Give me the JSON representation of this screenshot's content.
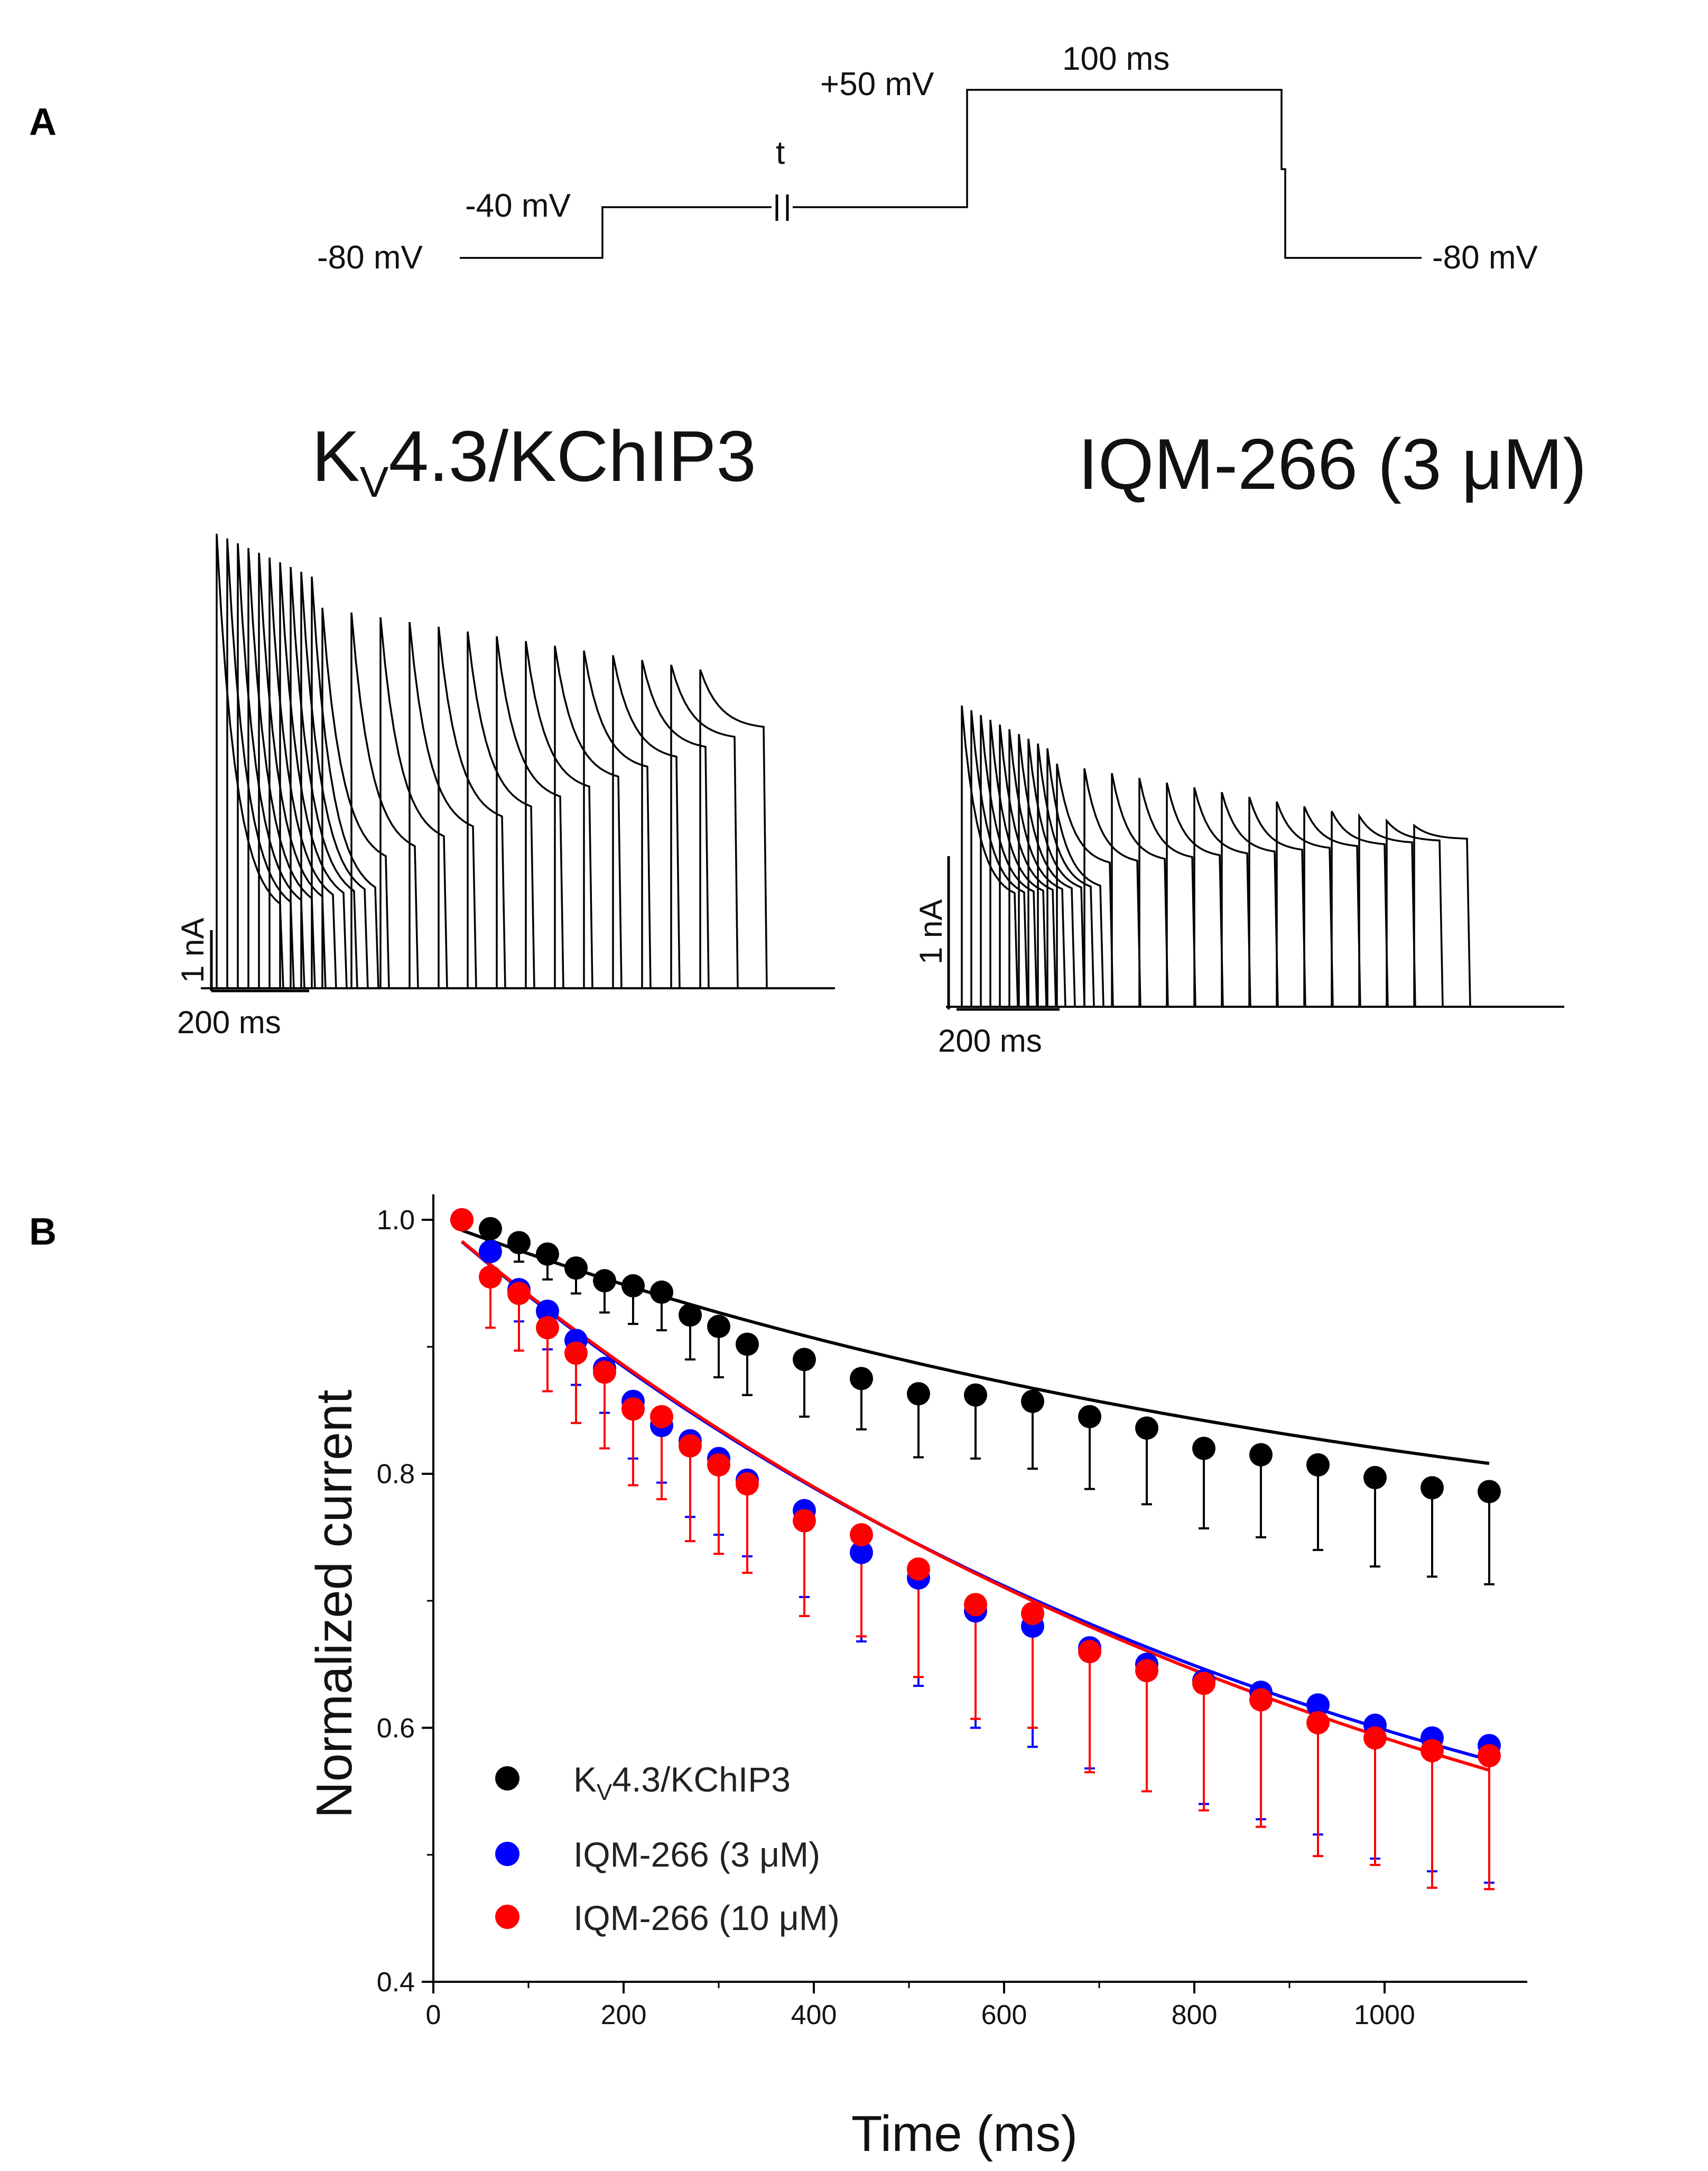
{
  "panel_a": {
    "letter": "A",
    "protocol": {
      "hold_left": "-80 mV",
      "prepulse": "-40 mV",
      "interval_symbol": "t",
      "test_pulse": "+50 mV",
      "pulse_duration": "100 ms",
      "hold_right": "-80 mV"
    },
    "control_title_main": "K",
    "control_title_sub": "V",
    "control_title_rest": "4.3/KChIP3",
    "drug_title": "IQM-266 (3 μM)",
    "control_scale": {
      "current": "1 nA",
      "time": "200 ms"
    },
    "drug_scale": {
      "current": "1 nA",
      "time": "200 ms"
    }
  },
  "panel_b": {
    "letter": "B"
  },
  "colors": {
    "control": "#000000",
    "iqm3": "#0000ff",
    "iqm10": "#ff0000"
  },
  "chart_data": {
    "type": "scatter",
    "xlabel": "Time (ms)",
    "ylabel": "Normalized current",
    "xlim": [
      0,
      1150
    ],
    "ylim": [
      0.4,
      1.02
    ],
    "xticks": [
      0,
      200,
      400,
      600,
      800,
      1000
    ],
    "yticks": [
      0.4,
      0.6,
      0.8,
      1.0
    ],
    "xtick_labels": [
      "0",
      "200",
      "400",
      "600",
      "800",
      "1000"
    ],
    "ytick_labels": [
      "0.4",
      "0.6",
      "0.8",
      "1.0"
    ],
    "legend_position": "bottom-left",
    "series": [
      {
        "name": "KV4.3/KChIP3",
        "legend_main": "K",
        "legend_sub": "V",
        "legend_rest": "4.3/KChIP3",
        "color": "#000000",
        "x": [
          30,
          60,
          90,
          120,
          150,
          180,
          210,
          240,
          270,
          300,
          330,
          390,
          450,
          510,
          570,
          630,
          690,
          750,
          810,
          870,
          930,
          990,
          1050,
          1110
        ],
        "y": [
          1.0,
          0.993,
          0.982,
          0.973,
          0.962,
          0.952,
          0.948,
          0.943,
          0.925,
          0.916,
          0.902,
          0.89,
          0.875,
          0.863,
          0.862,
          0.857,
          0.845,
          0.836,
          0.82,
          0.815,
          0.807,
          0.797,
          0.789,
          0.786
        ],
        "err": [
          0.0,
          0.01,
          0.015,
          0.02,
          0.02,
          0.025,
          0.03,
          0.03,
          0.035,
          0.04,
          0.04,
          0.045,
          0.04,
          0.05,
          0.05,
          0.053,
          0.057,
          0.06,
          0.063,
          0.065,
          0.067,
          0.07,
          0.07,
          0.073
        ]
      },
      {
        "name": "IQM-266 (3 μM)",
        "color": "#0000ff",
        "x": [
          30,
          60,
          90,
          120,
          150,
          180,
          210,
          240,
          270,
          300,
          330,
          390,
          450,
          510,
          570,
          630,
          690,
          750,
          810,
          870,
          930,
          990,
          1050,
          1110
        ],
        "y": [
          1.0,
          0.975,
          0.945,
          0.928,
          0.905,
          0.883,
          0.857,
          0.838,
          0.826,
          0.812,
          0.795,
          0.771,
          0.738,
          0.718,
          0.692,
          0.68,
          0.663,
          0.65,
          0.637,
          0.628,
          0.618,
          0.602,
          0.592,
          0.586
        ],
        "err": [
          0.0,
          0.02,
          0.025,
          0.03,
          0.035,
          0.035,
          0.045,
          0.045,
          0.06,
          0.06,
          0.06,
          0.068,
          0.07,
          0.085,
          0.092,
          0.095,
          0.095,
          0.1,
          0.097,
          0.1,
          0.102,
          0.105,
          0.105,
          0.108
        ]
      },
      {
        "name": "IQM-266 (10 μM)",
        "color": "#ff0000",
        "x": [
          30,
          60,
          90,
          120,
          150,
          180,
          210,
          240,
          270,
          300,
          330,
          390,
          450,
          510,
          570,
          630,
          690,
          750,
          810,
          870,
          930,
          990,
          1050,
          1110
        ],
        "y": [
          1.0,
          0.955,
          0.942,
          0.915,
          0.895,
          0.88,
          0.851,
          0.845,
          0.822,
          0.807,
          0.792,
          0.763,
          0.752,
          0.725,
          0.697,
          0.69,
          0.66,
          0.645,
          0.635,
          0.622,
          0.604,
          0.592,
          0.582,
          0.578
        ],
        "err": [
          0.0,
          0.04,
          0.045,
          0.05,
          0.055,
          0.06,
          0.06,
          0.065,
          0.075,
          0.07,
          0.07,
          0.075,
          0.08,
          0.085,
          0.09,
          0.09,
          0.095,
          0.095,
          0.1,
          0.1,
          0.105,
          0.1,
          0.108,
          0.105
        ]
      }
    ],
    "fits": [
      {
        "name": "KV4.3/KChIP3 fit",
        "color": "#000000",
        "A": 0.294,
        "tau": 1050,
        "C": 0.706
      },
      {
        "name": "IQM-266 (3 μM) fit",
        "color": "#0000ff",
        "A": 0.62,
        "tau": 950,
        "C": 0.382
      },
      {
        "name": "IQM-266 (10 μM) fit",
        "color": "#ff0000",
        "A": 0.66,
        "tau": 1030,
        "C": 0.342
      }
    ]
  }
}
